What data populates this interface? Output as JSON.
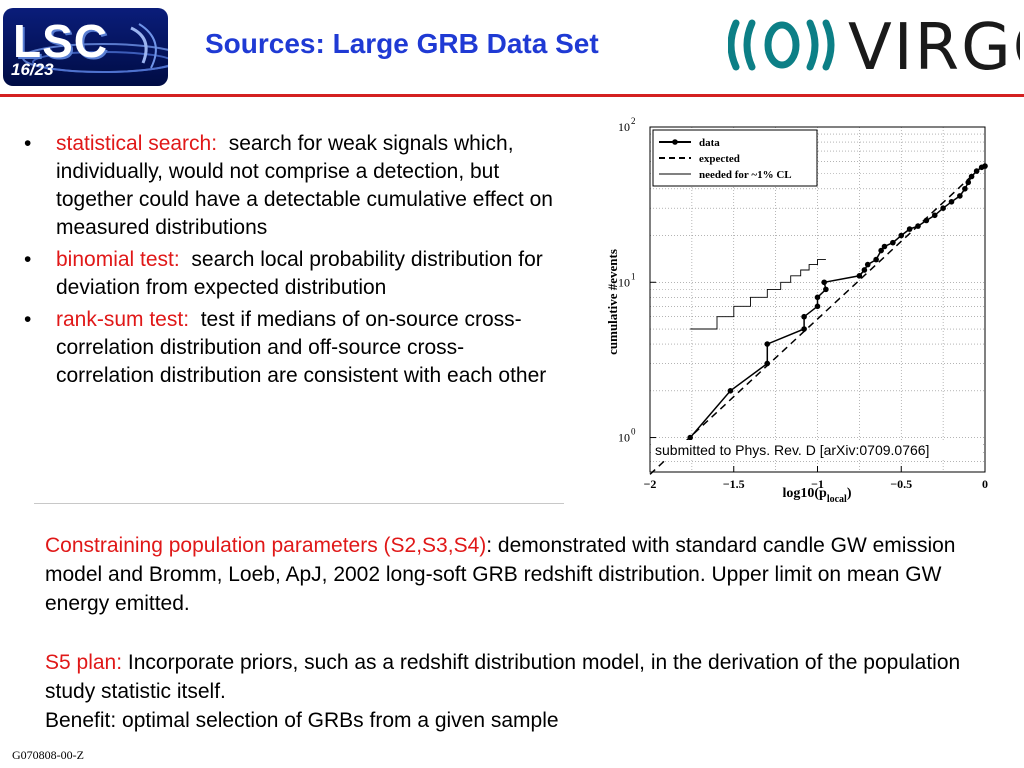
{
  "header": {
    "logo_lsc_text": "LSC",
    "logo_lsc_page": "16/23",
    "title": "Sources: Large  GRB Data Set",
    "logo_virgo_text": "VIRGO"
  },
  "bullets": [
    {
      "lead": "statistical search:",
      "text": "search for weak signals which, individually, would not comprise a detection, but together could have a detectable cumulative effect on measured distributions"
    },
    {
      "lead": "binomial test:",
      "text": "search local probability distribution for deviation from expected distribution"
    },
    {
      "lead": "rank-sum test:",
      "text": "test if medians of on-source cross-correlation distribution and off-source cross-correlation distribution are consistent with each other"
    }
  ],
  "para1": {
    "lead": "Constraining population parameters (S2,S3,S4)",
    "text": ": demonstrated with standard candle GW emission model and Bromm, Loeb, ApJ, 2002 long-soft GRB redshift distribution. Upper limit on mean GW energy emitted."
  },
  "para2": {
    "lead": "S5 plan:",
    "text": " Incorporate priors, such as a redshift distribution model, in the derivation of the population study statistic itself.",
    "line2": "Benefit: optimal selection of GRBs from a given sample"
  },
  "footer": "G070808-00-Z",
  "colors": {
    "title": "#1f3ad4",
    "accent_red": "#e01818",
    "rule": "#d42020"
  },
  "chart_data": {
    "type": "line",
    "ylabel": "cumulative #events",
    "xlabel": "log10(p",
    "xlabel_sub": "local",
    "xlabel_close": ")",
    "xlim": [
      -2,
      0
    ],
    "ylim": [
      0.6,
      100
    ],
    "yscale": "log",
    "xticks": [
      -2,
      -1.5,
      -1,
      -0.5,
      0
    ],
    "xtick_labels": [
      "−2",
      "−1.5",
      "−1",
      "−0.5",
      "0"
    ],
    "yticks": [
      1,
      10,
      100
    ],
    "ytick_labels": [
      "10",
      "10",
      "10"
    ],
    "ytick_exp": [
      "0",
      "1",
      "2"
    ],
    "grid": true,
    "legend_position": "top-left",
    "annotation": "submitted to Phys. Rev. D [arXiv:0709.0766]",
    "series": [
      {
        "name": "data",
        "style": "line-points",
        "x": [
          -1.76,
          -1.52,
          -1.3,
          -1.3,
          -1.08,
          -1.08,
          -1.0,
          -1.0,
          -0.95,
          -0.96,
          -0.75,
          -0.72,
          -0.7,
          -0.65,
          -0.62,
          -0.6,
          -0.55,
          -0.5,
          -0.45,
          -0.4,
          -0.35,
          -0.3,
          -0.25,
          -0.2,
          -0.15,
          -0.12,
          -0.1,
          -0.08,
          -0.05,
          -0.02,
          0.0
        ],
        "y": [
          1,
          2,
          3,
          4,
          5,
          6,
          7,
          8,
          9,
          10,
          11,
          12,
          13,
          14,
          16,
          17,
          18,
          20,
          22,
          23,
          25,
          27,
          30,
          33,
          36,
          40,
          44,
          48,
          52,
          55,
          56
        ]
      },
      {
        "name": "expected",
        "style": "dashed",
        "x": [
          -2.0,
          0.0
        ],
        "y": [
          0.58,
          58
        ]
      },
      {
        "name": "needed for ~1% CL",
        "style": "step",
        "x": [
          -1.76,
          -1.6,
          -1.6,
          -1.5,
          -1.5,
          -1.4,
          -1.4,
          -1.3,
          -1.3,
          -1.22,
          -1.22,
          -1.16,
          -1.16,
          -1.1,
          -1.1,
          -1.05,
          -1.05,
          -1.0,
          -1.0,
          -0.95
        ],
        "y": [
          5,
          5,
          6,
          6,
          7,
          7,
          8,
          8,
          9,
          9,
          10,
          10,
          11,
          11,
          12,
          12,
          13,
          13,
          14,
          14
        ]
      }
    ]
  }
}
